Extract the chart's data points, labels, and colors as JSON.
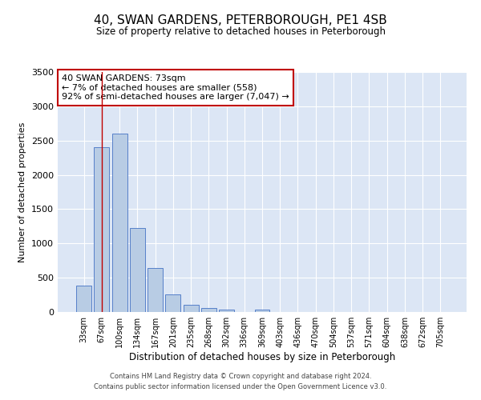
{
  "title": "40, SWAN GARDENS, PETERBOROUGH, PE1 4SB",
  "subtitle": "Size of property relative to detached houses in Peterborough",
  "xlabel": "Distribution of detached houses by size in Peterborough",
  "ylabel": "Number of detached properties",
  "bar_labels": [
    "33sqm",
    "67sqm",
    "100sqm",
    "134sqm",
    "167sqm",
    "201sqm",
    "235sqm",
    "268sqm",
    "302sqm",
    "336sqm",
    "369sqm",
    "403sqm",
    "436sqm",
    "470sqm",
    "504sqm",
    "537sqm",
    "571sqm",
    "604sqm",
    "638sqm",
    "672sqm",
    "705sqm"
  ],
  "bar_values": [
    390,
    2400,
    2600,
    1230,
    640,
    255,
    105,
    60,
    30,
    0,
    30,
    0,
    0,
    0,
    0,
    0,
    0,
    0,
    0,
    0,
    0
  ],
  "bar_color": "#b8cce4",
  "bar_edge_color": "#4472c4",
  "ylim": [
    0,
    3500
  ],
  "yticks": [
    0,
    500,
    1000,
    1500,
    2000,
    2500,
    3000,
    3500
  ],
  "vline_x": 1,
  "vline_color": "#c00000",
  "annotation_title": "40 SWAN GARDENS: 73sqm",
  "annotation_line1": "← 7% of detached houses are smaller (558)",
  "annotation_line2": "92% of semi-detached houses are larger (7,047) →",
  "annotation_box_color": "#c00000",
  "footer_line1": "Contains HM Land Registry data © Crown copyright and database right 2024.",
  "footer_line2": "Contains public sector information licensed under the Open Government Licence v3.0.",
  "bg_color": "#ffffff",
  "plot_bg_color": "#dce6f5",
  "grid_color": "#ffffff"
}
